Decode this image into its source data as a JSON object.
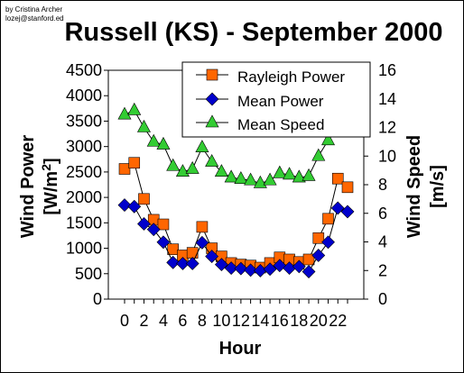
{
  "credit": [
    "by Cristina Archer",
    "lozej@stanford.ed"
  ],
  "chart_data": {
    "type": "line",
    "title": "Russell (KS) - September 2000",
    "xlabel": "Hour",
    "ylabel_left_line1": "Wind Power",
    "ylabel_left_line2_prefix": "[W/m",
    "ylabel_left_sup": "2",
    "ylabel_left_line2_suffix": "]",
    "ylabel_right_line1": "Wind Speed",
    "ylabel_right_line2": "[m/s]",
    "x": [
      0,
      1,
      2,
      3,
      4,
      5,
      6,
      7,
      8,
      9,
      10,
      11,
      12,
      13,
      14,
      15,
      16,
      17,
      18,
      19,
      20,
      21,
      22,
      23
    ],
    "x_tick_labels": [
      "0",
      "2",
      "4",
      "6",
      "8",
      "10",
      "12",
      "14",
      "16",
      "18",
      "20",
      "22"
    ],
    "x_tick_values": [
      0,
      2,
      4,
      6,
      8,
      10,
      12,
      14,
      16,
      18,
      20,
      22
    ],
    "ylim_left": [
      0,
      4500
    ],
    "y_left_ticks": [
      "0",
      "500",
      "1000",
      "1500",
      "2000",
      "2500",
      "3000",
      "3500",
      "4000",
      "4500"
    ],
    "ylim_right": [
      0,
      16
    ],
    "y_right_ticks": [
      "0",
      "2",
      "4",
      "6",
      "8",
      "10",
      "12",
      "14",
      "16"
    ],
    "legend_position": "top-right",
    "series": [
      {
        "name": "Rayleigh Power",
        "axis": "left",
        "marker": "square",
        "color": "#ff6600",
        "values": [
          2560,
          2680,
          1970,
          1560,
          1470,
          980,
          860,
          910,
          1420,
          1000,
          840,
          710,
          680,
          660,
          620,
          710,
          820,
          780,
          730,
          780,
          1200,
          1580,
          2370,
          2200
        ]
      },
      {
        "name": "Mean Power",
        "axis": "left",
        "marker": "diamond",
        "color": "#0000cc",
        "values": [
          1850,
          1820,
          1480,
          1370,
          1120,
          720,
          700,
          700,
          1110,
          840,
          680,
          610,
          600,
          570,
          560,
          590,
          660,
          610,
          640,
          540,
          860,
          1120,
          1790,
          1720
        ]
      },
      {
        "name": "Mean Speed",
        "axis": "right",
        "marker": "triangle",
        "color": "#33cc33",
        "values": [
          12.9,
          13.2,
          12.0,
          11.0,
          10.8,
          9.3,
          8.9,
          9.1,
          10.6,
          9.6,
          8.9,
          8.5,
          8.4,
          8.3,
          8.1,
          8.3,
          8.8,
          8.7,
          8.5,
          8.6,
          10.0,
          11.1,
          13.8,
          13.2
        ]
      }
    ]
  }
}
